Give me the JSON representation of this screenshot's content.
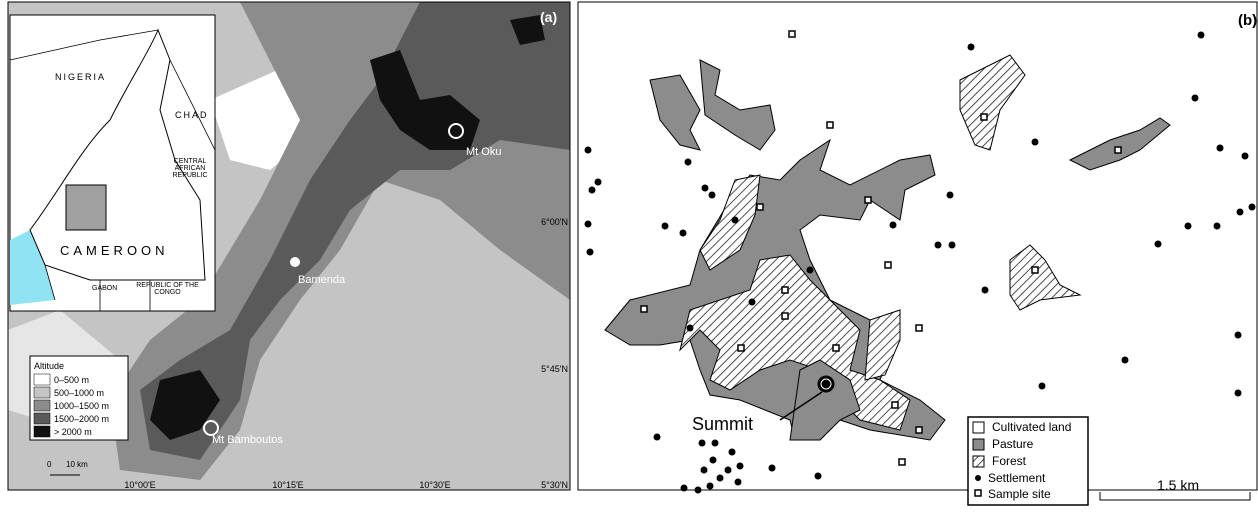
{
  "panel_a": {
    "label": "(a)",
    "inset": {
      "countries": [
        "NIGERIA",
        "CHAD",
        "CENTRAL AFRICAN REPUBLIC",
        "CAMEROON",
        "GABON",
        "REPUBLIC OF THE CONGO"
      ]
    },
    "places": [
      "Mt Oku",
      "Bamenda",
      "Mt Bamboutos"
    ],
    "legend": {
      "title": "Altitude",
      "items": [
        "0–500 m",
        "500–1000 m",
        "1000–1500 m",
        "1500–2000 m",
        "> 2000 m"
      ]
    },
    "scale": [
      "0",
      "10 km"
    ],
    "lat_labels": [
      "6°00'N",
      "5°45'N",
      "5°30'N"
    ],
    "lon_labels": [
      "10°00'E",
      "10°15'E",
      "10°30'E"
    ]
  },
  "panel_b": {
    "label": "(b)",
    "summit": "Summit",
    "legend": [
      "Cultivated land",
      "Pasture",
      "Forest",
      "Settlement",
      "Sample site"
    ],
    "scale": "1.5 km"
  }
}
